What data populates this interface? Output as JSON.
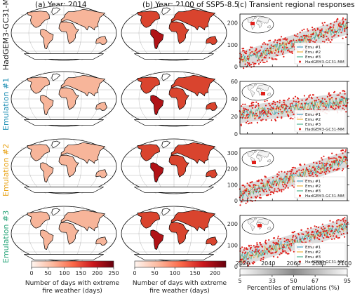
{
  "panels": {
    "a": "(a) Year: 2014",
    "b": "(b) Year: 2100 of SSP5-8.5",
    "c": "(c) Transient regional responses"
  },
  "rows": [
    {
      "label": "HadGEM3-GC31-MM",
      "color": "#222222"
    },
    {
      "label": "Emulation #1",
      "color": "#1f8fb4"
    },
    {
      "label": "Emulation #2",
      "color": "#e8a317"
    },
    {
      "label": "Emulation #3",
      "color": "#2aa57a"
    }
  ],
  "colorbars": {
    "a": {
      "ticks": [
        "0",
        "50",
        "100",
        "150",
        "200",
        "250"
      ],
      "label_line1": "Number of days with extreme",
      "label_line2": "fire weather (days)"
    },
    "b": {
      "ticks": [
        "0",
        "50",
        "100",
        "150",
        "200"
      ],
      "label_line1": "Number of days with extreme",
      "label_line2": "fire weather (days)"
    },
    "c": {
      "ticks": [
        "5",
        "33",
        "50",
        "67",
        "95"
      ],
      "label": "Percentiles of emulations (%)"
    }
  },
  "legend": [
    "Emu #1",
    "Emu #2",
    "Emu #3",
    "HadGEM3-GC31-MM"
  ],
  "colors": {
    "emu1": "#1f8fb4",
    "emu2": "#e8a317",
    "emu3": "#2aa57a",
    "esm": "#e0201b"
  },
  "chart_data": [
    {
      "type": "scatter",
      "panel": "c-1",
      "x_range": [
        2014,
        2100
      ],
      "ylim": [
        0,
        240
      ],
      "yticks": [
        "0",
        "100",
        "200"
      ],
      "series": [
        {
          "name": "HadGEM3-GC31-MM",
          "x": [
            2014,
            2100
          ],
          "y": [
            30,
            185
          ]
        }
      ]
    },
    {
      "type": "scatter",
      "panel": "c-2",
      "x_range": [
        2014,
        2100
      ],
      "ylim": [
        0,
        60
      ],
      "yticks": [
        "0",
        "20",
        "40",
        "60"
      ],
      "series": [
        {
          "name": "HadGEM3-GC31-MM",
          "x": [
            2014,
            2100
          ],
          "y": [
            22,
            38
          ]
        }
      ]
    },
    {
      "type": "scatter",
      "panel": "c-3",
      "x_range": [
        2014,
        2100
      ],
      "ylim": [
        0,
        330
      ],
      "yticks": [
        "0",
        "100",
        "200",
        "300"
      ],
      "series": [
        {
          "name": "HadGEM3-GC31-MM",
          "x": [
            2014,
            2100
          ],
          "y": [
            35,
            260
          ]
        }
      ]
    },
    {
      "type": "scatter",
      "panel": "c-4",
      "x_range": [
        2014,
        2100
      ],
      "ylim": [
        0,
        240
      ],
      "yticks": [
        "0",
        "100",
        "200"
      ],
      "series": [
        {
          "name": "HadGEM3-GC31-MM",
          "x": [
            2014,
            2100
          ],
          "y": [
            40,
            190
          ]
        }
      ]
    }
  ],
  "xaxis_c": {
    "ticks": [
      "2020",
      "2040",
      "2060",
      "2080",
      "2100"
    ]
  }
}
